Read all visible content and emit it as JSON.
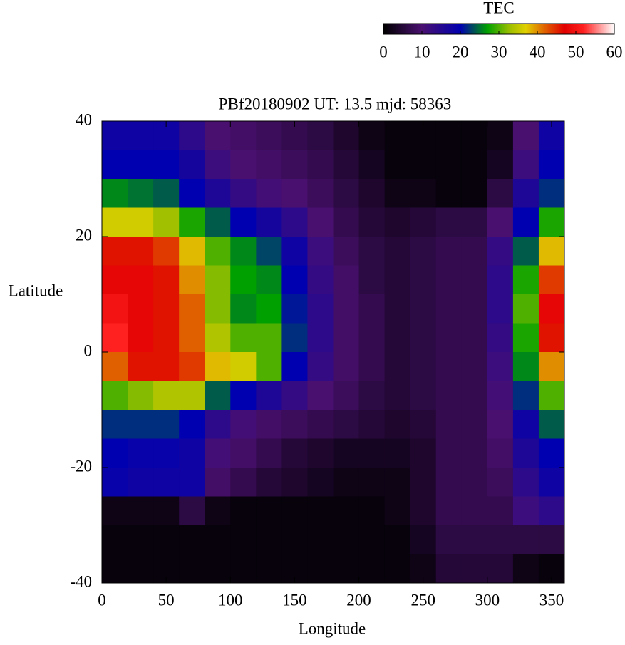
{
  "chart_data": {
    "type": "heatmap",
    "title": "PBf20180902  UT: 13.5  mjd: 58363",
    "xlabel": "Longitude",
    "ylabel": "Latitude",
    "colorbar_label": "TEC",
    "x": [
      10,
      30,
      50,
      70,
      90,
      110,
      130,
      150,
      170,
      190,
      210,
      230,
      250,
      270,
      290,
      310,
      330,
      350
    ],
    "y": [
      37.5,
      32.5,
      27.5,
      22.5,
      17.5,
      12.5,
      7.5,
      2.5,
      -2.5,
      -7.5,
      -12.5,
      -17.5,
      -22.5,
      -27.5,
      -32.5,
      -37.5
    ],
    "cell_width": 20,
    "cell_height": 5,
    "z": [
      [
        18,
        18,
        18,
        14,
        10,
        9,
        8,
        7,
        6,
        4,
        2,
        1,
        1,
        1,
        1,
        2,
        10,
        18
      ],
      [
        20,
        20,
        20,
        17,
        12,
        10,
        9,
        8,
        7,
        5,
        3,
        1,
        1,
        1,
        1,
        3,
        12,
        20
      ],
      [
        26,
        25,
        24,
        20,
        16,
        13,
        11,
        10,
        8,
        6,
        4,
        2,
        2,
        1,
        1,
        6,
        16,
        22
      ],
      [
        36,
        36,
        33,
        28,
        24,
        20,
        17,
        14,
        10,
        7,
        5,
        4,
        5,
        6,
        6,
        10,
        20,
        28
      ],
      [
        46,
        46,
        44,
        38,
        30,
        26,
        23,
        18,
        12,
        8,
        6,
        5,
        6,
        7,
        7,
        13,
        24,
        38
      ],
      [
        48,
        48,
        46,
        40,
        32,
        27,
        26,
        20,
        13,
        9,
        6,
        5,
        6,
        7,
        7,
        14,
        28,
        44
      ],
      [
        50,
        48,
        46,
        42,
        32,
        26,
        27,
        21,
        14,
        9,
        7,
        5,
        6,
        7,
        7,
        14,
        30,
        48
      ],
      [
        52,
        48,
        46,
        42,
        34,
        30,
        30,
        22,
        14,
        9,
        7,
        5,
        6,
        7,
        7,
        13,
        28,
        46
      ],
      [
        42,
        46,
        46,
        44,
        38,
        36,
        30,
        20,
        13,
        9,
        7,
        5,
        6,
        7,
        7,
        12,
        26,
        40
      ],
      [
        30,
        32,
        34,
        34,
        24,
        20,
        16,
        13,
        10,
        8,
        6,
        5,
        6,
        7,
        7,
        11,
        22,
        30
      ],
      [
        22,
        22,
        22,
        20,
        14,
        11,
        9,
        8,
        7,
        6,
        5,
        4,
        5,
        7,
        7,
        10,
        18,
        24
      ],
      [
        20,
        19,
        19,
        18,
        11,
        9,
        7,
        5,
        4,
        3,
        3,
        3,
        4,
        7,
        7,
        9,
        16,
        20
      ],
      [
        19,
        18,
        18,
        18,
        9,
        7,
        5,
        4,
        3,
        2,
        2,
        2,
        4,
        7,
        7,
        8,
        14,
        18
      ],
      [
        2,
        2,
        2,
        6,
        2,
        1,
        1,
        1,
        1,
        1,
        1,
        2,
        4,
        7,
        7,
        7,
        12,
        14
      ],
      [
        1,
        1,
        1,
        1,
        1,
        1,
        1,
        1,
        1,
        1,
        1,
        1,
        3,
        6,
        6,
        6,
        6,
        6
      ],
      [
        1,
        1,
        1,
        1,
        1,
        1,
        1,
        1,
        1,
        1,
        1,
        1,
        2,
        5,
        5,
        5,
        2,
        1
      ]
    ],
    "xlim": [
      0,
      360
    ],
    "xticks": [
      0,
      50,
      100,
      150,
      200,
      250,
      300,
      350
    ],
    "ylim": [
      -40,
      40
    ],
    "yticks": [
      -40,
      -20,
      0,
      20,
      40
    ],
    "clim": [
      0,
      60
    ],
    "cticks": [
      0,
      10,
      20,
      30,
      40,
      50,
      60
    ],
    "colormap": [
      [
        0,
        "#000000"
      ],
      [
        10,
        "#4a1070"
      ],
      [
        20,
        "#0000b0"
      ],
      [
        27,
        "#00a000"
      ],
      [
        33,
        "#a0c000"
      ],
      [
        37,
        "#e0d000"
      ],
      [
        42,
        "#e06000"
      ],
      [
        47,
        "#e00000"
      ],
      [
        52,
        "#ff2020"
      ],
      [
        60,
        "#ffffff"
      ]
    ]
  }
}
